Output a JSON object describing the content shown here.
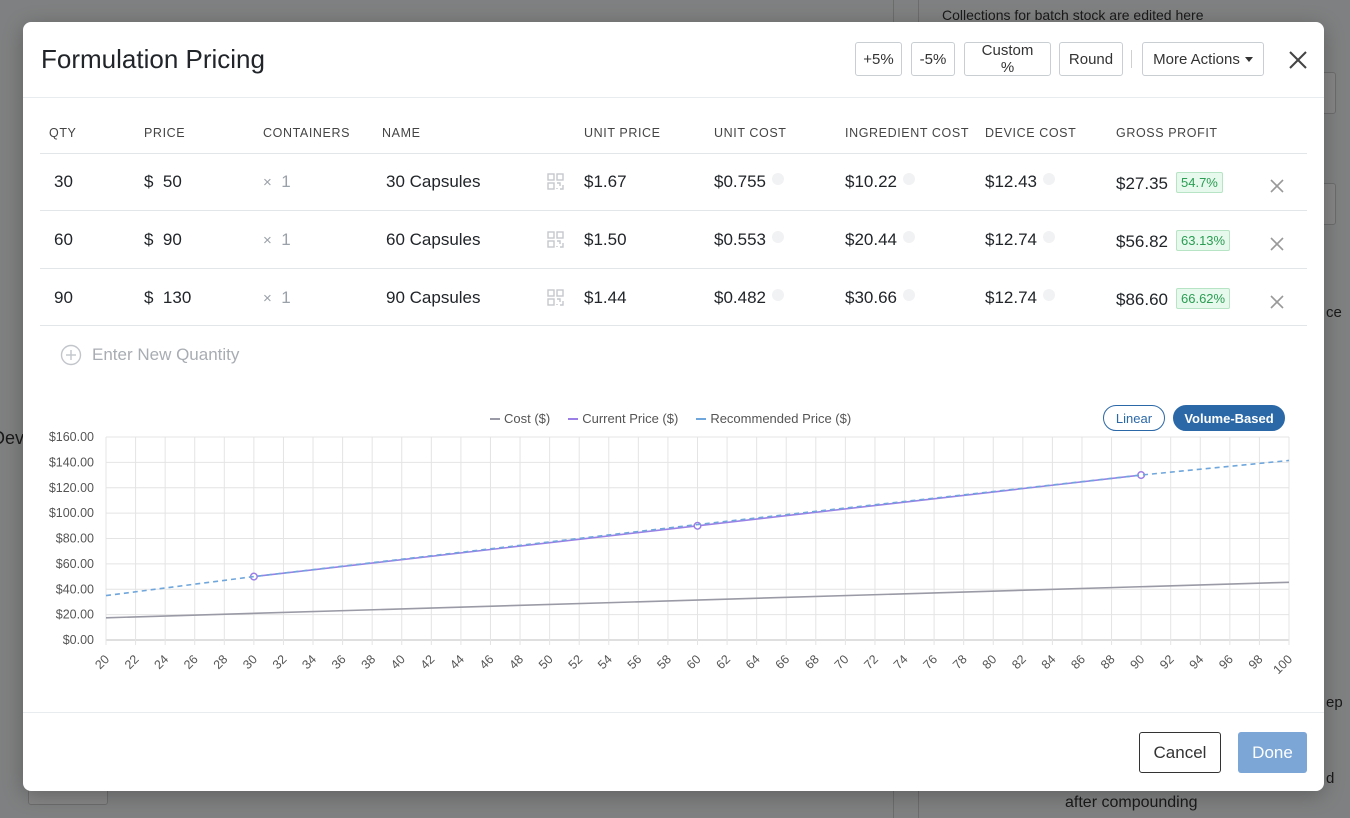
{
  "background": {
    "top_text": "Collections for batch stock are edited here",
    "bottom_text": "after compounding",
    "left_fragment": "Dev",
    "right_fragment_1": "ce",
    "right_fragment_2": "ep",
    "right_fragment_3": "d"
  },
  "modal": {
    "title": "Formulation Pricing",
    "header_buttons": {
      "plus5": "+5%",
      "minus5": "-5%",
      "custom": "Custom %",
      "round": "Round",
      "more_actions": "More Actions"
    }
  },
  "table": {
    "headers": {
      "qty": "QTY",
      "price": "PRICE",
      "containers": "CONTAINERS",
      "name": "NAME",
      "unit_price": "UNIT PRICE",
      "unit_cost": "UNIT COST",
      "ingredient_cost": "INGREDIENT COST",
      "device_cost": "DEVICE COST",
      "gross_profit": "GROSS PROFIT"
    },
    "rows": [
      {
        "qty": "30",
        "currency": "$",
        "price": "50",
        "containers_prefix": "×",
        "containers": "1",
        "name": "30 Capsules",
        "unit_price": "$1.67",
        "unit_cost": "$0.755",
        "ingredient_cost": "$10.22",
        "device_cost": "$12.43",
        "gross_profit": "$27.35",
        "margin": "54.7%"
      },
      {
        "qty": "60",
        "currency": "$",
        "price": "90",
        "containers_prefix": "×",
        "containers": "1",
        "name": "60 Capsules",
        "unit_price": "$1.50",
        "unit_cost": "$0.553",
        "ingredient_cost": "$20.44",
        "device_cost": "$12.74",
        "gross_profit": "$56.82",
        "margin": "63.13%"
      },
      {
        "qty": "90",
        "currency": "$",
        "price": "130",
        "containers_prefix": "×",
        "containers": "1",
        "name": "90 Capsules",
        "unit_price": "$1.44",
        "unit_cost": "$0.482",
        "ingredient_cost": "$30.66",
        "device_cost": "$12.74",
        "gross_profit": "$86.60",
        "margin": "66.62%"
      }
    ],
    "new_quantity_placeholder": "Enter New Quantity"
  },
  "chart_toggle": {
    "linear": "Linear",
    "volume": "Volume-Based",
    "active": "Volume-Based"
  },
  "chart_data": {
    "type": "line",
    "legend_placement": "top-center",
    "grid": true,
    "x_range": [
      20,
      100
    ],
    "x_ticks": [
      20,
      22,
      24,
      26,
      28,
      30,
      32,
      34,
      36,
      38,
      40,
      42,
      44,
      46,
      48,
      50,
      52,
      54,
      56,
      58,
      60,
      62,
      64,
      66,
      68,
      70,
      72,
      74,
      76,
      78,
      80,
      82,
      84,
      86,
      88,
      90,
      92,
      94,
      96,
      98,
      100
    ],
    "y_range": [
      0,
      160
    ],
    "y_ticks": [
      "$0.00",
      "$20.00",
      "$40.00",
      "$60.00",
      "$80.00",
      "$100.00",
      "$120.00",
      "$140.00",
      "$160.00"
    ],
    "series": [
      {
        "name": "Cost ($)",
        "color": "#9a9aa6",
        "style": "solid",
        "x": [
          20,
          100
        ],
        "y": [
          17.5,
          45.5
        ]
      },
      {
        "name": "Current Price ($)",
        "color": "#9b7fe6",
        "style": "solid",
        "markers": true,
        "x": [
          30,
          60,
          90
        ],
        "y": [
          50,
          90,
          130
        ]
      },
      {
        "name": "Recommended Price ($)",
        "color": "#6fa6dc",
        "style": "dashed",
        "x": [
          20,
          30,
          60,
          90,
          100
        ],
        "y": [
          35,
          50,
          91,
          130,
          141.5
        ]
      }
    ]
  },
  "footer": {
    "cancel": "Cancel",
    "done": "Done"
  },
  "colors": {
    "primary": "#2b68a8",
    "done_button": "#7ba6d6",
    "margin_badge": "#2a9d53"
  }
}
